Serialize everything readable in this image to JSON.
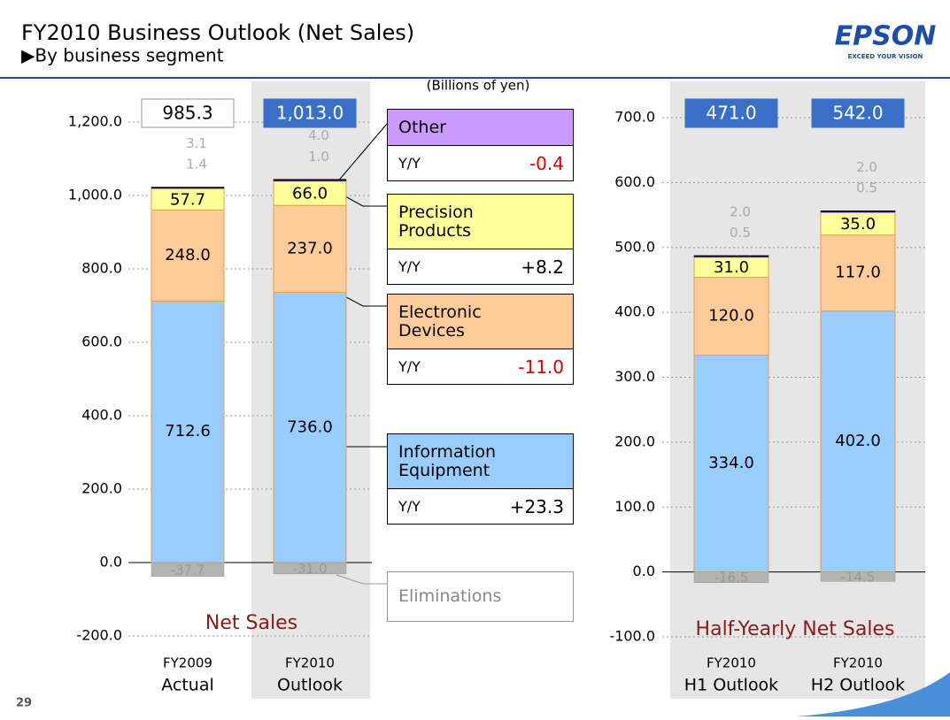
{
  "header": {
    "title": "FY2010 Business Outlook (Net Sales)",
    "subtitle": "▶By business segment",
    "logo": "EPSON",
    "tagline": "EXCEED YOUR VISION"
  },
  "page_number": "29",
  "yoy_label": "Y/Y",
  "yoy": [
    "-0.4",
    "+8.2",
    "-11.0",
    "+23.3"
  ],
  "chart_data": [
    {
      "type": "stacked_bar",
      "title": "Net Sales",
      "unit": "(Billions of yen)",
      "categories": [
        [
          "FY2009",
          "Actual"
        ],
        [
          "FY2010",
          "Outlook"
        ]
      ],
      "series": [
        {
          "name": "Information Equipment",
          "color": "#99ccff",
          "values": [
            712.6,
            736
          ],
          "value_labels": [
            "712.6",
            "736.0"
          ]
        },
        {
          "name": "Electronic Devices",
          "color": "#ffcc99",
          "values": [
            248,
            237
          ],
          "value_labels": [
            "248.0",
            "237.0"
          ]
        },
        {
          "name": "Precision Products",
          "color": "#ffff99",
          "values": [
            57.7,
            66
          ],
          "value_labels": [
            "57.7",
            "66.0"
          ]
        },
        {
          "name": "Other",
          "color": "#cc99ff",
          "values": [
            1.4,
            1
          ],
          "value_labels": [
            "1.4",
            "1.0"
          ]
        },
        {
          "color": "#000000",
          "values": [
            3.1,
            4
          ],
          "value_labels": [
            "3.1",
            "4.0"
          ]
        },
        {
          "name": "Eliminations",
          "color": "#b3b3b3",
          "values": [
            -37.7,
            -31
          ],
          "value_labels": [
            "-37.7",
            "-31.0"
          ]
        }
      ],
      "totals": [
        985.3,
        1013
      ],
      "total_labels": [
        "985.3",
        "1,013.0"
      ],
      "ylim": [
        -200,
        1200
      ],
      "yticks": [
        {
          "value": -200,
          "label": "-200.0"
        },
        {
          "value": 0,
          "label": "0.0"
        },
        {
          "value": 200,
          "label": "200.0"
        },
        {
          "value": 400,
          "label": "400.0"
        },
        {
          "value": 600,
          "label": "600.0"
        },
        {
          "value": 800,
          "label": "800.0"
        },
        {
          "value": 1000,
          "label": "1,000.0"
        },
        {
          "value": 1200,
          "label": "1,200.0"
        }
      ],
      "grid": true
    },
    {
      "type": "stacked_bar",
      "title": "Half-Yearly Net Sales",
      "categories": [
        [
          "FY2010",
          "H1 Outlook"
        ],
        [
          "FY2010",
          "H2 Outlook"
        ]
      ],
      "series": [
        {
          "color": "#99ccff",
          "values": [
            334,
            402
          ],
          "value_labels": [
            "334.0",
            "402.0"
          ]
        },
        {
          "color": "#ffcc99",
          "values": [
            120,
            117
          ],
          "value_labels": [
            "120.0",
            "117.0"
          ]
        },
        {
          "color": "#ffff99",
          "values": [
            31,
            35
          ],
          "value_labels": [
            "31.0",
            "35.0"
          ]
        },
        {
          "color": "#cc99ff",
          "values": [
            0.5,
            0.5
          ],
          "value_labels": [
            "0.5",
            "0.5"
          ]
        },
        {
          "color": "#000000",
          "values": [
            2,
            2
          ],
          "value_labels": [
            "2.0",
            "2.0"
          ]
        },
        {
          "color": "#b3b3b3",
          "values": [
            -16.5,
            -14.5
          ],
          "value_labels": [
            "-16.5",
            "-14.5"
          ]
        }
      ],
      "totals": [
        471,
        542
      ],
      "total_labels": [
        "471.0",
        "542.0"
      ],
      "ylim": [
        -100,
        700
      ],
      "yticks": [
        {
          "value": -100,
          "label": "-100.0"
        },
        {
          "value": 0,
          "label": "0.0"
        },
        {
          "value": 100,
          "label": "100.0"
        },
        {
          "value": 200,
          "label": "200.0"
        },
        {
          "value": 300,
          "label": "300.0"
        },
        {
          "value": 400,
          "label": "400.0"
        },
        {
          "value": 500,
          "label": "500.0"
        },
        {
          "value": 600,
          "label": "600.0"
        },
        {
          "value": 700,
          "label": "700.0"
        }
      ],
      "grid": true
    }
  ]
}
